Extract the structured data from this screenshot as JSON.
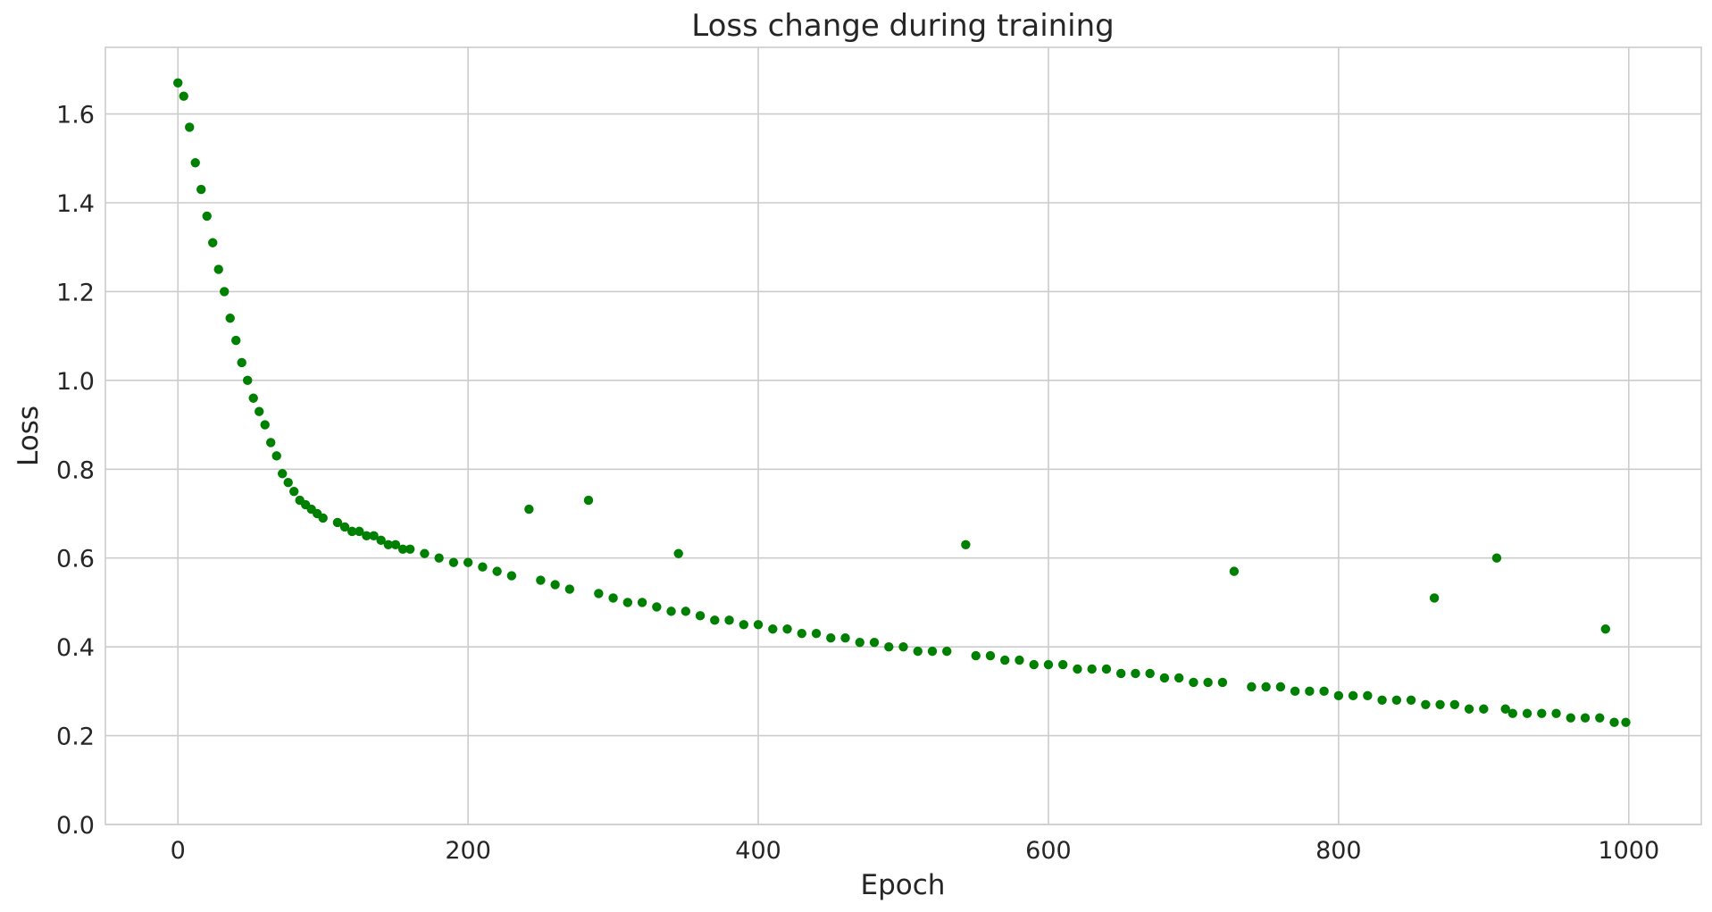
{
  "chart_data": {
    "type": "scatter",
    "title": "Loss change during training",
    "xlabel": "Epoch",
    "ylabel": "Loss",
    "xlim": [
      -50,
      1050
    ],
    "ylim": [
      0.0,
      1.75
    ],
    "xticks": [
      0,
      200,
      400,
      600,
      800,
      1000
    ],
    "yticks": [
      0.0,
      0.2,
      0.4,
      0.6,
      0.8,
      1.0,
      1.2,
      1.4,
      1.6
    ],
    "xtick_labels": [
      "0",
      "200",
      "400",
      "600",
      "800",
      "1000"
    ],
    "ytick_labels": [
      "0.0",
      "0.2",
      "0.4",
      "0.6",
      "0.8",
      "1.0",
      "1.2",
      "1.4",
      "1.6"
    ],
    "grid": true,
    "marker_color": "#008000",
    "series": [
      {
        "x": [
          0,
          4,
          8,
          12,
          16,
          20,
          24,
          28,
          32,
          36,
          40,
          44,
          48,
          52,
          56,
          60,
          64,
          68,
          72,
          76,
          80,
          84,
          88,
          92,
          96,
          100,
          110,
          115,
          120,
          125,
          130,
          135,
          140,
          145,
          150,
          155,
          160,
          170,
          180,
          190,
          200,
          210,
          220,
          230,
          242,
          250,
          260,
          270,
          283,
          290,
          300,
          310,
          320,
          330,
          340,
          345,
          350,
          360,
          370,
          380,
          390,
          400,
          410,
          420,
          430,
          440,
          450,
          460,
          470,
          480,
          490,
          500,
          510,
          520,
          530,
          543,
          550,
          560,
          570,
          580,
          590,
          600,
          610,
          620,
          630,
          640,
          650,
          660,
          670,
          680,
          690,
          700,
          710,
          720,
          728,
          740,
          750,
          760,
          770,
          780,
          790,
          800,
          810,
          820,
          830,
          840,
          850,
          860,
          866,
          870,
          880,
          890,
          900,
          909,
          915,
          920,
          930,
          940,
          950,
          960,
          970,
          980,
          984,
          990,
          998
        ],
        "y": [
          1.67,
          1.64,
          1.57,
          1.49,
          1.43,
          1.37,
          1.31,
          1.25,
          1.2,
          1.14,
          1.09,
          1.04,
          1.0,
          0.96,
          0.93,
          0.9,
          0.86,
          0.83,
          0.79,
          0.77,
          0.75,
          0.73,
          0.72,
          0.71,
          0.7,
          0.69,
          0.68,
          0.67,
          0.66,
          0.66,
          0.65,
          0.65,
          0.64,
          0.63,
          0.63,
          0.62,
          0.62,
          0.61,
          0.6,
          0.59,
          0.59,
          0.58,
          0.57,
          0.56,
          0.71,
          0.55,
          0.54,
          0.53,
          0.73,
          0.52,
          0.51,
          0.5,
          0.5,
          0.49,
          0.48,
          0.61,
          0.48,
          0.47,
          0.46,
          0.46,
          0.45,
          0.45,
          0.44,
          0.44,
          0.43,
          0.43,
          0.42,
          0.42,
          0.41,
          0.41,
          0.4,
          0.4,
          0.39,
          0.39,
          0.39,
          0.63,
          0.38,
          0.38,
          0.37,
          0.37,
          0.36,
          0.36,
          0.36,
          0.35,
          0.35,
          0.35,
          0.34,
          0.34,
          0.34,
          0.33,
          0.33,
          0.32,
          0.32,
          0.32,
          0.57,
          0.31,
          0.31,
          0.31,
          0.3,
          0.3,
          0.3,
          0.29,
          0.29,
          0.29,
          0.28,
          0.28,
          0.28,
          0.27,
          0.51,
          0.27,
          0.27,
          0.26,
          0.26,
          0.6,
          0.26,
          0.25,
          0.25,
          0.25,
          0.25,
          0.24,
          0.24,
          0.24,
          0.44,
          0.23,
          0.23
        ]
      }
    ]
  }
}
